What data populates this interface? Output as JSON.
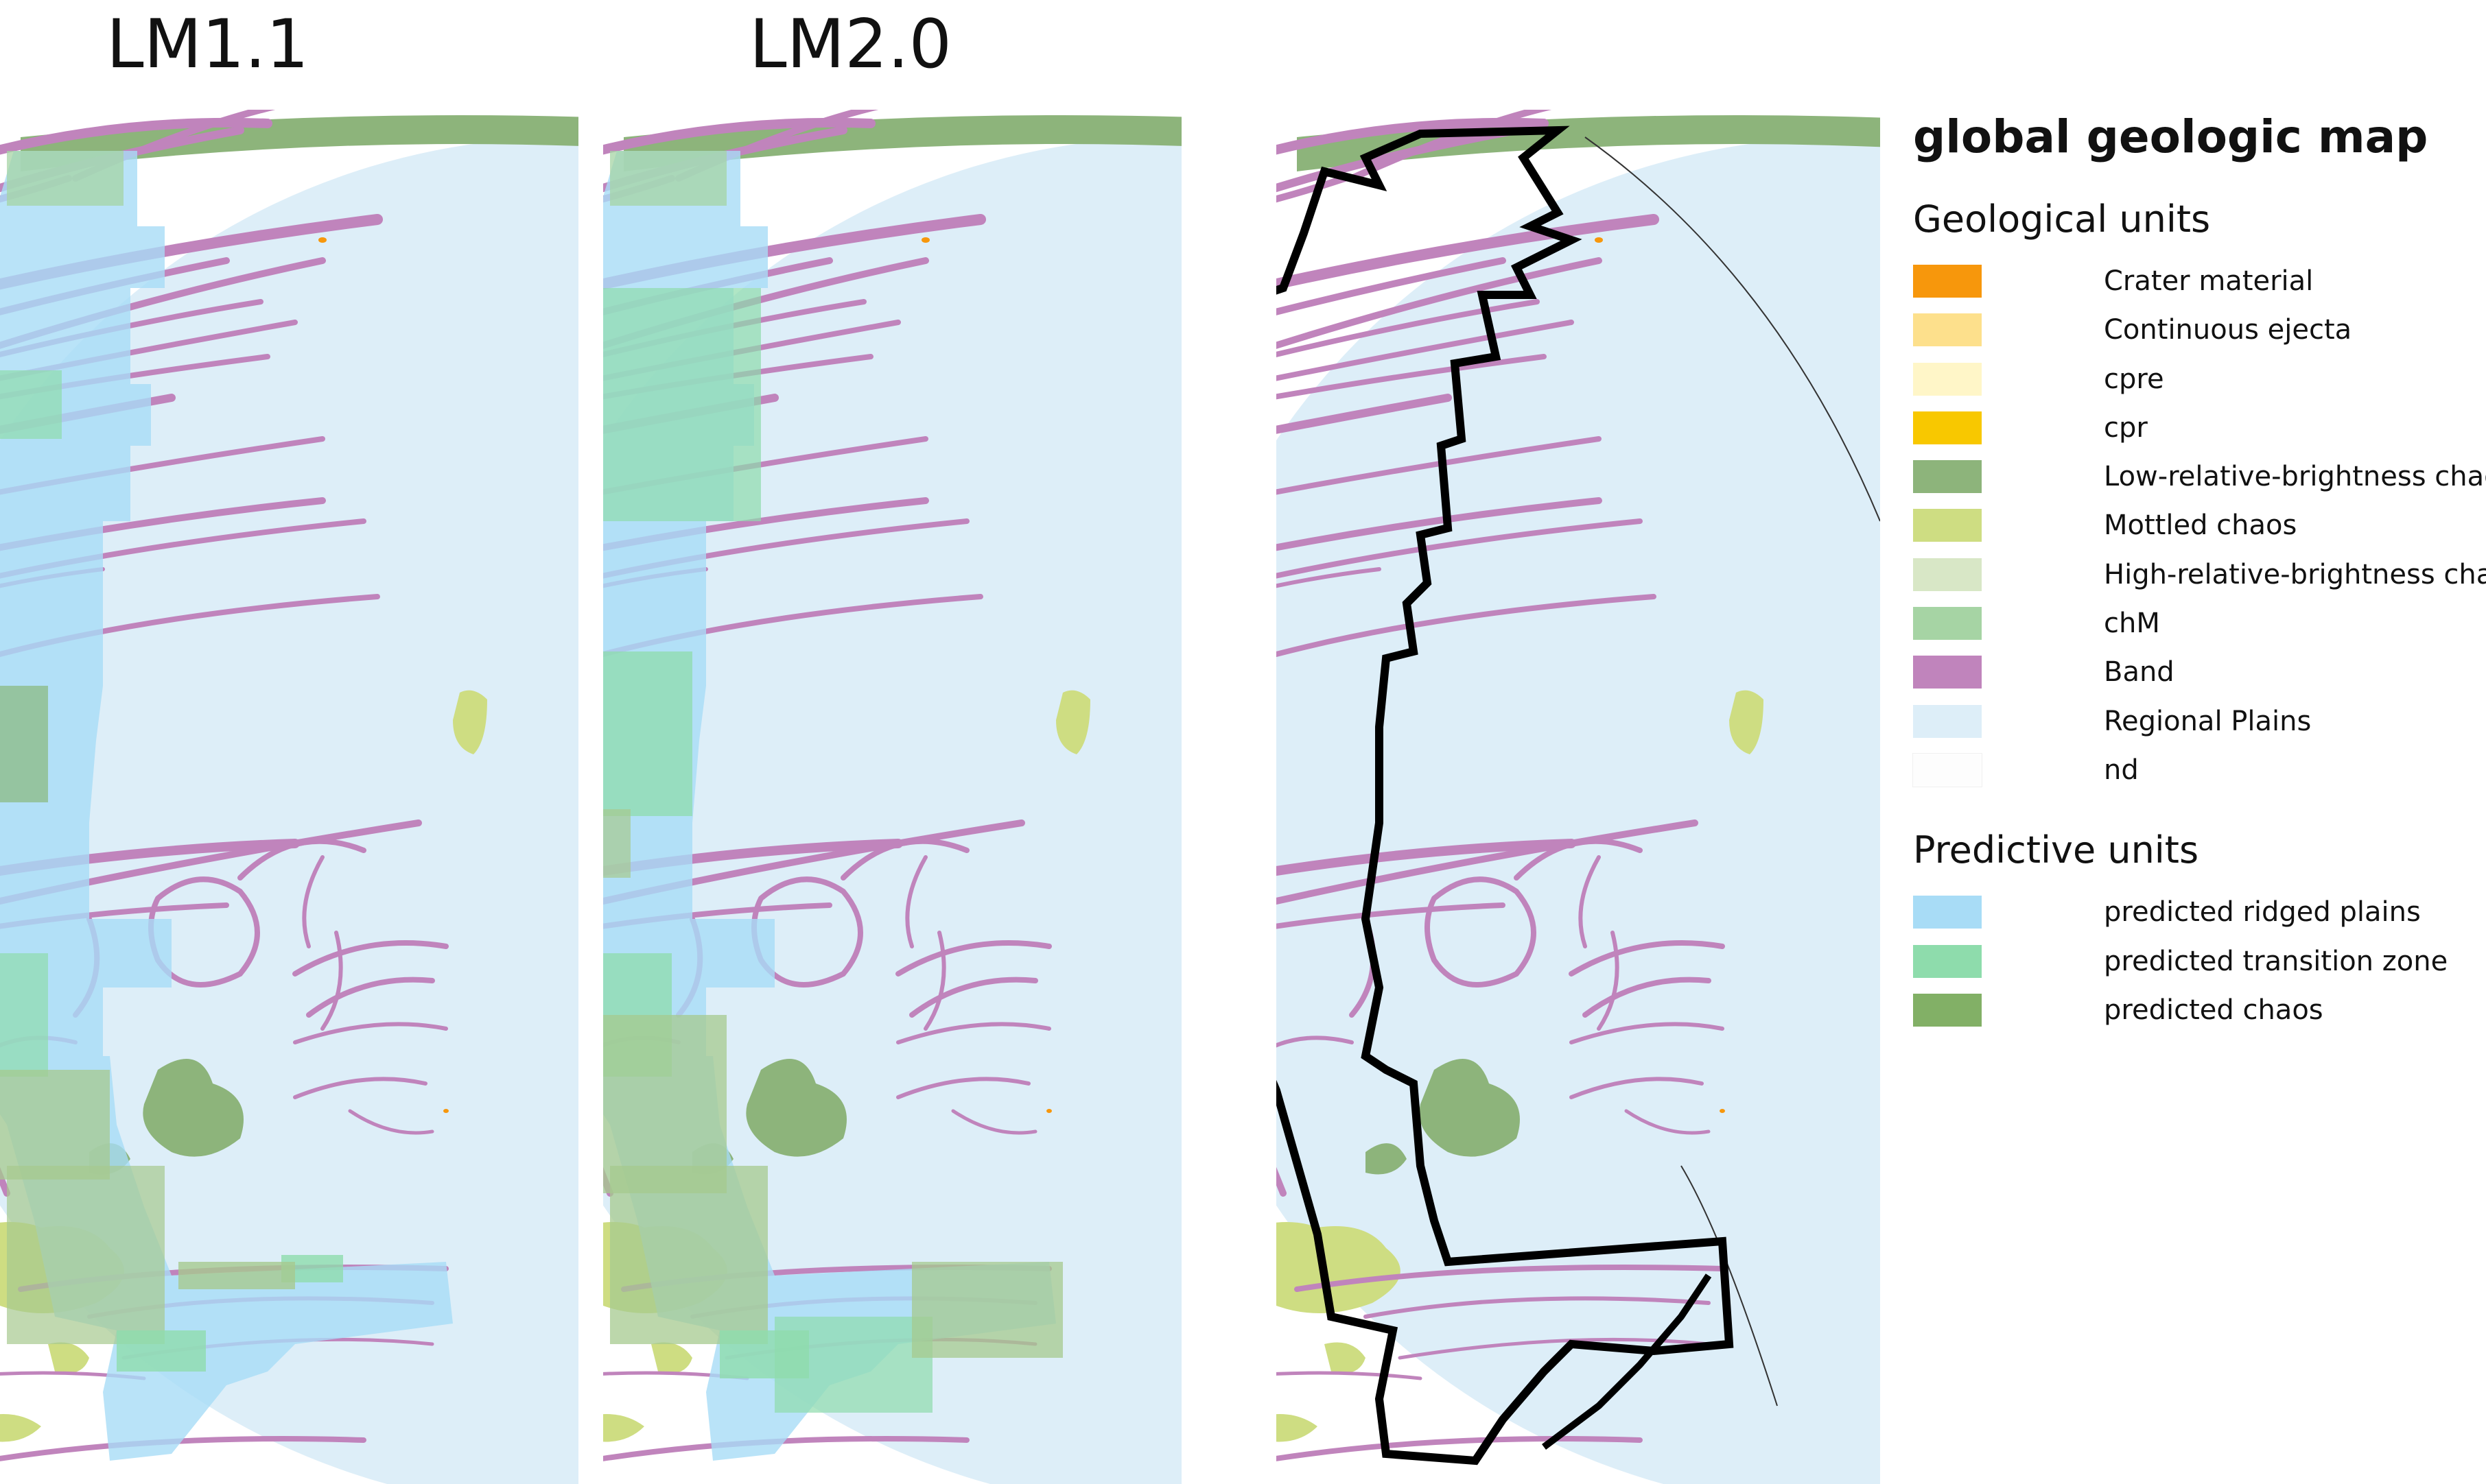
{
  "panels": [
    {
      "title": "LM1.1"
    },
    {
      "title": "LM2.0"
    }
  ],
  "legend": {
    "title": "global geologic map",
    "geological_section": "Geological units",
    "geological_units": [
      {
        "label": "Crater material",
        "color": "#f7970c"
      },
      {
        "label": "Continuous ejecta",
        "color": "#fde08c"
      },
      {
        "label": "cpre",
        "color": "#fff6c8"
      },
      {
        "label": "cpr",
        "color": "#f8c800"
      },
      {
        "label": "Low-relative-brightness chaos",
        "color": "#8db47b"
      },
      {
        "label": "Mottled chaos",
        "color": "#cedd82"
      },
      {
        "label": "High-relative-brightness chaos",
        "color": "#d8e7c6"
      },
      {
        "label": "chM",
        "color": "#a6d4a4"
      },
      {
        "label": "Band",
        "color": "#c084bc"
      },
      {
        "label": "Regional Plains",
        "color": "#ddeef8"
      },
      {
        "label": "nd",
        "color": "#fdfdfd"
      }
    ],
    "predictive_section": "Predictive units",
    "predictive_units": [
      {
        "label": "predicted ridged plains",
        "color": "#a8dcf6"
      },
      {
        "label": "predicted transition zone",
        "color": "#8edcac"
      },
      {
        "label": "predicted chaos",
        "color": "#82b066"
      }
    ]
  }
}
